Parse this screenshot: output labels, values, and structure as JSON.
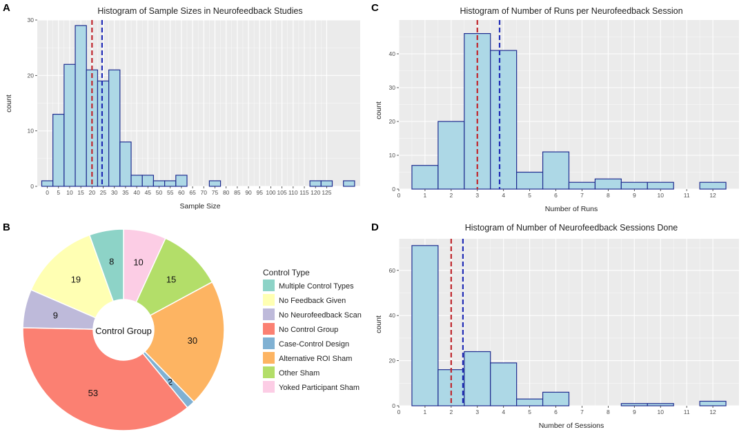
{
  "panels": {
    "A": {
      "letter": "A"
    },
    "B": {
      "letter": "B"
    },
    "C": {
      "letter": "C"
    },
    "D": {
      "letter": "D"
    }
  },
  "colors": {
    "panel_bg": "#ebebeb",
    "grid": "#ffffff",
    "bar_fill": "#add8e6",
    "bar_edge": "#1f2c8f",
    "median_line": "#c0272d",
    "mean_line": "#1f2bb5"
  },
  "chart_data": [
    {
      "id": "A",
      "type": "bar",
      "title": "Histogram of Sample Sizes in Neurofeedback Studies",
      "xlabel": "Sample Size",
      "ylabel": "count",
      "xlim": [
        -4.5,
        140
      ],
      "ylim": [
        0,
        30
      ],
      "x_ticks": [
        0,
        5,
        10,
        15,
        20,
        25,
        30,
        35,
        40,
        45,
        50,
        55,
        60,
        65,
        70,
        75,
        80,
        85,
        90,
        95,
        100,
        105,
        110,
        115,
        120,
        125
      ],
      "x_tick_labels": [
        "0",
        "5",
        "10",
        "15",
        "20",
        "25",
        "30",
        "35",
        "40",
        "45",
        "50",
        "55",
        "60",
        "65",
        "70",
        "75",
        "80",
        "85",
        "90",
        "95",
        "100",
        "105",
        "110",
        "115",
        "120",
        "125"
      ],
      "y_ticks": [
        0,
        10,
        20,
        30
      ],
      "y_tick_labels": [
        "0",
        "10",
        "20",
        "30"
      ],
      "bin_width": 5,
      "x": [
        0,
        5,
        10,
        15,
        20,
        25,
        30,
        35,
        40,
        45,
        50,
        55,
        60,
        65,
        70,
        75,
        80,
        85,
        90,
        95,
        100,
        105,
        110,
        115,
        120,
        125,
        130,
        135
      ],
      "values": [
        1,
        13,
        22,
        29,
        21,
        19,
        21,
        8,
        2,
        2,
        1,
        1,
        2,
        0,
        0,
        1,
        0,
        0,
        0,
        0,
        0,
        0,
        0,
        0,
        1,
        1,
        0,
        1
      ],
      "median": 20,
      "mean": 24.5
    },
    {
      "id": "C",
      "type": "bar",
      "title": "Histogram of Number of Runs per Neurofeedback Session",
      "xlabel": "Number of Runs",
      "ylabel": "count",
      "xlim": [
        0,
        13
      ],
      "ylim": [
        0,
        50
      ],
      "x_ticks": [
        0,
        1,
        2,
        3,
        4,
        5,
        6,
        7,
        8,
        9,
        10,
        11,
        12
      ],
      "x_tick_labels": [
        "0",
        "1",
        "2",
        "3",
        "4",
        "5",
        "6",
        "7",
        "8",
        "9",
        "10",
        "11",
        "12"
      ],
      "y_ticks": [
        0,
        10,
        20,
        30,
        40
      ],
      "y_tick_labels": [
        "0",
        "10",
        "20",
        "30",
        "40"
      ],
      "bin_width": 1,
      "x": [
        1,
        2,
        3,
        4,
        5,
        6,
        7,
        8,
        9,
        10,
        11,
        12
      ],
      "values": [
        7,
        20,
        46,
        41,
        5,
        11,
        2,
        3,
        2,
        2,
        0,
        2
      ],
      "median": 3,
      "mean": 3.85
    },
    {
      "id": "D",
      "type": "bar",
      "title": "Histogram of Number of Neurofeedback Sessions Done",
      "xlabel": "Number of Sessions",
      "ylabel": "count",
      "xlim": [
        0,
        13
      ],
      "ylim": [
        0,
        74
      ],
      "x_ticks": [
        0,
        1,
        2,
        3,
        4,
        5,
        6,
        7,
        8,
        9,
        10,
        11,
        12
      ],
      "x_tick_labels": [
        "0",
        "1",
        "2",
        "3",
        "4",
        "5",
        "6",
        "7",
        "8",
        "9",
        "10",
        "11",
        "12"
      ],
      "y_ticks": [
        0,
        20,
        40,
        60
      ],
      "y_tick_labels": [
        "0",
        "20",
        "40",
        "60"
      ],
      "bin_width": 1,
      "x": [
        1,
        2,
        3,
        4,
        5,
        6,
        7,
        8,
        9,
        10,
        11,
        12
      ],
      "values": [
        71,
        16,
        24,
        19,
        3,
        6,
        0,
        0,
        1,
        1,
        0,
        2
      ],
      "median": 2,
      "mean": 2.45
    },
    {
      "id": "B",
      "type": "pie",
      "center_label": "Control Group",
      "legend_title": "Control Type",
      "categories": [
        "Multiple Control Types",
        "No Feedback Given",
        "No Neurofeedback Scan",
        "No Control Group",
        "Case-Control Design",
        "Alternative ROI Sham",
        "Other Sham",
        "Yoked Participant Sham"
      ],
      "values": [
        8,
        19,
        9,
        53,
        2,
        30,
        15,
        10
      ],
      "slice_labels": [
        "8",
        "19",
        "9",
        "53",
        "2",
        "30",
        "15",
        "10"
      ],
      "slice_colors": [
        "#8dd3c7",
        "#ffffb3",
        "#bebada",
        "#fb8072",
        "#80b1d3",
        "#fdb462",
        "#b3de69",
        "#fccde5"
      ],
      "plot_order": [
        7,
        6,
        5,
        4,
        3,
        2,
        1,
        0
      ]
    }
  ]
}
